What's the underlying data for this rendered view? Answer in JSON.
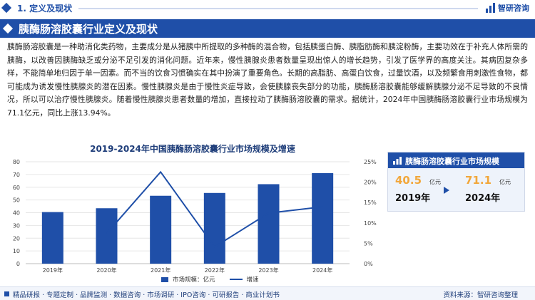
{
  "section": {
    "label": "1. 定义及现状"
  },
  "logo": {
    "text": "智研咨询"
  },
  "banner": {
    "title": "胰酶肠溶胶囊行业定义及现状"
  },
  "paragraph": "胰酶肠溶胶囊是一种助消化类药物，主要成分是从猪胰中所提取的多种酶的混合物，包括胰蛋白酶、胰脂肪酶和胰淀粉酶，主要功效在于补充人体所需的胰酶，以改善因胰酶缺乏或分泌不足引发的消化问题。近年来，慢性胰腺炎患者数量呈现出惊人的增长趋势，引发了医学界的高度关注。其病因复杂多样，不能简单地归因于单一因素。而不当的饮食习惯确实在其中扮演了重要角色。长期的高脂肪、高蛋白饮食，过量饮酒，以及频繁食用刺激性食物，都可能成为诱发慢性胰腺炎的潜在因素。慢性胰腺炎是由于慢性炎症导致，会使胰腺丧失部分的功能，胰酶肠溶胶囊能够缓解胰腺分泌不足导致的不良情况，所以可以治疗慢性胰腺炎。随着慢性胰腺炎患者数量的增加，直接拉动了胰酶肠溶胶囊的需求。据统计，2024年中国胰酶肠溶胶囊行业市场规模为71.1亿元，同比上涨13.94%。",
  "chart_data": {
    "type": "bar",
    "title": "2019-2024年中国胰酶肠溶胶囊行业市场规模及增速",
    "categories": [
      "2019年",
      "2020年",
      "2021年",
      "2022年",
      "2023年",
      "2024年"
    ],
    "series": [
      {
        "name": "市场规模：亿元",
        "type": "bar",
        "values": [
          40.5,
          43.5,
          53.3,
          55.5,
          62.4,
          71.1
        ],
        "axis": "left"
      },
      {
        "name": "增速",
        "type": "line",
        "values": [
          null,
          7.4,
          22.5,
          4.1,
          12.4,
          13.94
        ],
        "axis": "right"
      }
    ],
    "y_left": {
      "ylim": [
        0,
        80
      ],
      "ticks": [
        "0",
        "10",
        "20",
        "30",
        "40",
        "50",
        "60",
        "70",
        "80"
      ]
    },
    "y_right": {
      "ylim": [
        0,
        25
      ],
      "ticks": [
        "0%",
        "5%",
        "10%",
        "15%",
        "20%",
        "25%"
      ]
    },
    "legend_placement": "bottom",
    "colors": {
      "bar": "#1f4fa8",
      "line": "#1f4fa8"
    }
  },
  "side_card": {
    "title": "胰酶肠溶胶囊行业市场规模",
    "start_value": "40.5",
    "start_unit": "亿元",
    "start_year": "2019年",
    "end_value": "71.1",
    "end_unit": "亿元",
    "end_year": "2024年"
  },
  "footer": {
    "tags": "精品研报 · 专题定制 · 品牌监测 · 数据咨询 · 市场调研 · IPO咨询 · 可研报告 · 商业计划书",
    "source": "资料来源：智研咨询整理"
  },
  "colors": {
    "brand": "#1f4fa8",
    "accent": "#f2a73b"
  }
}
